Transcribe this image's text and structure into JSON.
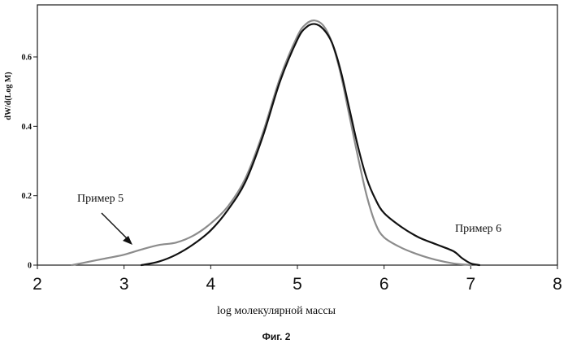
{
  "figure_caption": "Фиг. 2",
  "chart_data": {
    "type": "line",
    "xlabel": "log молекулярной массы",
    "ylabel": "dW/d(Log M)",
    "xlim": [
      2,
      8
    ],
    "ylim": [
      0,
      0.75
    ],
    "x_ticks": [
      "2",
      "3",
      "4",
      "5",
      "6",
      "7",
      "8"
    ],
    "y_ticks": [
      "0",
      "0.2",
      "0.4",
      "0.6"
    ],
    "grid": false,
    "legend": "none",
    "annotations": [
      {
        "text": "Пример 5",
        "series": 0
      },
      {
        "text": "Пример 6",
        "series": 1
      }
    ],
    "series": [
      {
        "name": "Пример 5",
        "color": "#8c8c8c",
        "x": [
          2.4,
          2.6,
          2.8,
          3.0,
          3.2,
          3.4,
          3.6,
          3.8,
          4.0,
          4.2,
          4.4,
          4.6,
          4.8,
          5.0,
          5.1,
          5.2,
          5.3,
          5.4,
          5.5,
          5.6,
          5.7,
          5.8,
          5.9,
          6.0,
          6.2,
          6.4,
          6.6,
          6.8,
          7.0
        ],
        "y": [
          0.0,
          0.01,
          0.02,
          0.03,
          0.045,
          0.058,
          0.065,
          0.085,
          0.12,
          0.17,
          0.25,
          0.38,
          0.54,
          0.66,
          0.695,
          0.705,
          0.69,
          0.64,
          0.55,
          0.43,
          0.31,
          0.2,
          0.12,
          0.08,
          0.05,
          0.03,
          0.015,
          0.005,
          0.0
        ]
      },
      {
        "name": "Пример 6",
        "color": "#111111",
        "x": [
          3.2,
          3.4,
          3.6,
          3.8,
          4.0,
          4.2,
          4.4,
          4.6,
          4.8,
          5.0,
          5.1,
          5.2,
          5.3,
          5.4,
          5.5,
          5.6,
          5.7,
          5.8,
          5.9,
          6.0,
          6.2,
          6.4,
          6.6,
          6.8,
          6.9,
          7.0,
          7.1
        ],
        "y": [
          0.0,
          0.01,
          0.03,
          0.06,
          0.1,
          0.16,
          0.24,
          0.37,
          0.53,
          0.65,
          0.685,
          0.695,
          0.68,
          0.64,
          0.56,
          0.45,
          0.34,
          0.25,
          0.19,
          0.15,
          0.11,
          0.08,
          0.06,
          0.04,
          0.02,
          0.005,
          0.0
        ]
      }
    ]
  }
}
